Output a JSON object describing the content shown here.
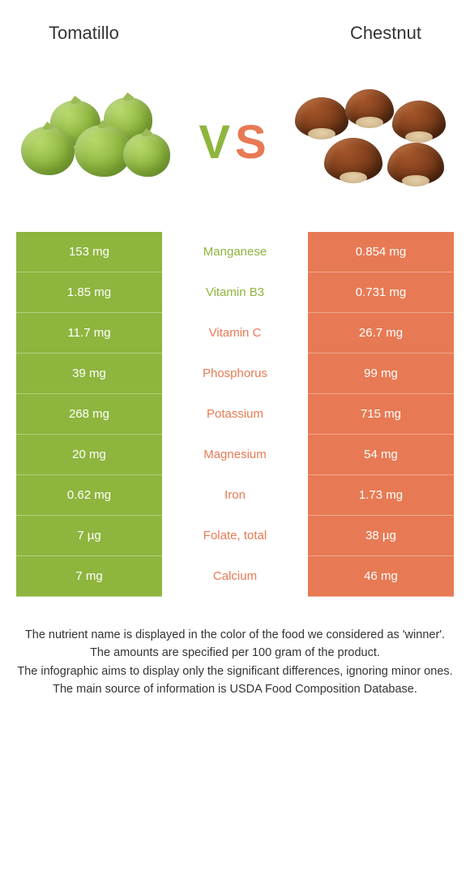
{
  "colors": {
    "left": "#8eb53e",
    "right": "#e77a54",
    "bg": "#ffffff",
    "text": "#333333"
  },
  "header": {
    "left_title": "Tomatillo",
    "right_title": "Chestnut"
  },
  "vs": {
    "v": "V",
    "s": "S"
  },
  "nutrients": [
    {
      "name": "Manganese",
      "left": "153 mg",
      "right": "0.854 mg",
      "winner": "left"
    },
    {
      "name": "Vitamin B3",
      "left": "1.85 mg",
      "right": "0.731 mg",
      "winner": "left"
    },
    {
      "name": "Vitamin C",
      "left": "11.7 mg",
      "right": "26.7 mg",
      "winner": "right"
    },
    {
      "name": "Phosphorus",
      "left": "39 mg",
      "right": "99 mg",
      "winner": "right"
    },
    {
      "name": "Potassium",
      "left": "268 mg",
      "right": "715 mg",
      "winner": "right"
    },
    {
      "name": "Magnesium",
      "left": "20 mg",
      "right": "54 mg",
      "winner": "right"
    },
    {
      "name": "Iron",
      "left": "0.62 mg",
      "right": "1.73 mg",
      "winner": "right"
    },
    {
      "name": "Folate, total",
      "left": "7 µg",
      "right": "38 µg",
      "winner": "right"
    },
    {
      "name": "Calcium",
      "left": "7 mg",
      "right": "46 mg",
      "winner": "right"
    }
  ],
  "footer_lines": [
    "The nutrient name is displayed in the color of the food we considered as 'winner'.",
    "The amounts are specified per 100 gram of the product.",
    "The infographic aims to display only the significant differences, ignoring minor ones.",
    "The main source of information is USDA Food Composition Database."
  ]
}
